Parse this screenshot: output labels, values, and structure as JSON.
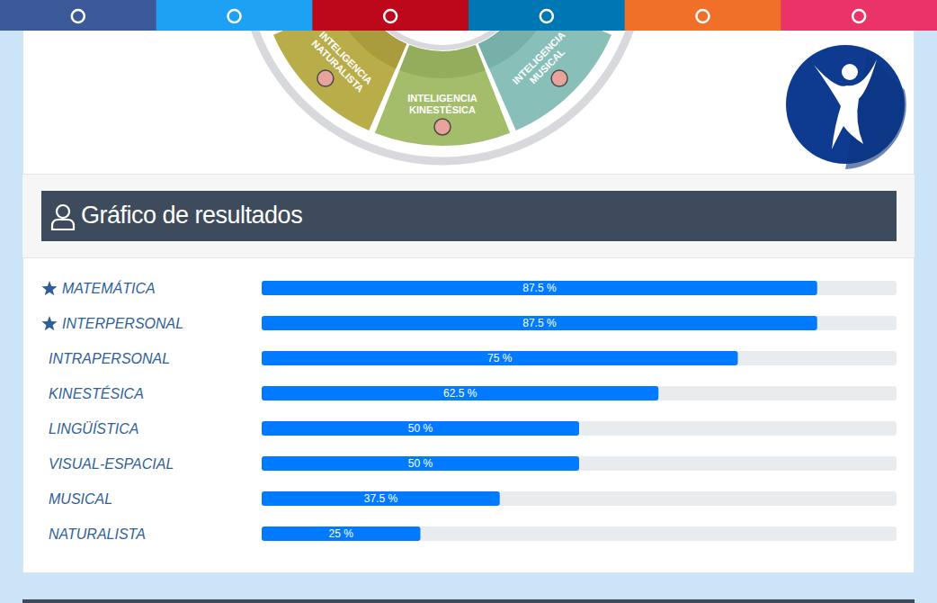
{
  "page": {
    "wheel_labels": [
      "INTELIGENCIA NATURALISTA",
      "INTELIGENCIA KINESTÉSICA",
      "INTELIGENCIA MUSICAL"
    ]
  },
  "chart_data": {
    "type": "bar",
    "title": "Gráfico de resultados",
    "orientation": "horizontal",
    "categories": [
      "MATEMÁTICA",
      "INTERPERSONAL",
      "INTRAPERSONAL",
      "KINESTÉSICA",
      "LINGÜÍSTICA",
      "VISUAL-ESPACIAL",
      "MUSICAL",
      "NATURALISTA"
    ],
    "values": [
      87.5,
      87.5,
      75,
      62.5,
      50,
      50,
      37.5,
      25
    ],
    "value_labels": [
      "87.5 %",
      "87.5 %",
      "75 %",
      "62.5 %",
      "50 %",
      "50 %",
      "37.5 %",
      "25 %"
    ],
    "color": "#007bff",
    "xlim": [
      0,
      100
    ],
    "data_labels": true,
    "tick_labels": false,
    "grid": false
  }
}
